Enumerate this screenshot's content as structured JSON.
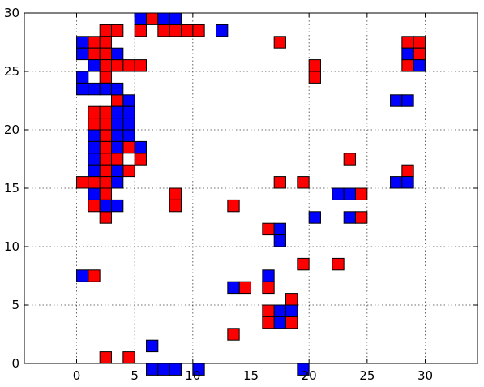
{
  "chart_data": {
    "type": "scatter",
    "marker": "square",
    "grid": true,
    "xlim": [
      -4.5,
      34.5
    ],
    "ylim": [
      0,
      30
    ],
    "xticks": [
      0,
      5,
      10,
      15,
      20,
      25,
      30
    ],
    "yticks": [
      0,
      5,
      10,
      15,
      20,
      25,
      30
    ],
    "xtick_labels": [
      "0",
      "5",
      "10",
      "15",
      "20",
      "25",
      "30"
    ],
    "ytick_labels": [
      "0",
      "5",
      "10",
      "15",
      "20",
      "25",
      "30"
    ],
    "colors": {
      "red": "#ff0000",
      "blue": "#0000ff"
    },
    "series": [
      {
        "color": "red",
        "points": [
          [
            6.5,
            29.5
          ],
          [
            2.5,
            28.5
          ],
          [
            3.5,
            28.5
          ],
          [
            5.5,
            28.5
          ],
          [
            7.5,
            28.5
          ],
          [
            8.5,
            28.5
          ],
          [
            9.5,
            28.5
          ],
          [
            10.5,
            28.5
          ],
          [
            1.5,
            27.5
          ],
          [
            2.5,
            27.5
          ],
          [
            17.5,
            27.5
          ],
          [
            28.5,
            27.5
          ],
          [
            29.5,
            27.5
          ],
          [
            1.5,
            26.5
          ],
          [
            2.5,
            26.5
          ],
          [
            29.5,
            26.5
          ],
          [
            2.5,
            25.5
          ],
          [
            3.5,
            25.5
          ],
          [
            4.5,
            25.5
          ],
          [
            5.5,
            25.5
          ],
          [
            20.5,
            25.5
          ],
          [
            28.5,
            25.5
          ],
          [
            2.5,
            24.5
          ],
          [
            20.5,
            24.5
          ],
          [
            3.5,
            22.5
          ],
          [
            1.5,
            21.5
          ],
          [
            2.5,
            21.5
          ],
          [
            1.5,
            20.5
          ],
          [
            2.5,
            20.5
          ],
          [
            2.5,
            19.5
          ],
          [
            2.5,
            18.5
          ],
          [
            4.5,
            18.5
          ],
          [
            2.5,
            17.5
          ],
          [
            3.5,
            17.5
          ],
          [
            5.5,
            17.5
          ],
          [
            23.5,
            17.5
          ],
          [
            2.5,
            16.5
          ],
          [
            4.5,
            16.5
          ],
          [
            28.5,
            16.5
          ],
          [
            0.5,
            15.5
          ],
          [
            1.5,
            15.5
          ],
          [
            2.5,
            15.5
          ],
          [
            17.5,
            15.5
          ],
          [
            19.5,
            15.5
          ],
          [
            2.5,
            14.5
          ],
          [
            8.5,
            14.5
          ],
          [
            24.5,
            14.5
          ],
          [
            1.5,
            13.5
          ],
          [
            8.5,
            13.5
          ],
          [
            13.5,
            13.5
          ],
          [
            2.5,
            12.5
          ],
          [
            24.5,
            12.5
          ],
          [
            16.5,
            11.5
          ],
          [
            19.5,
            8.5
          ],
          [
            22.5,
            8.5
          ],
          [
            1.5,
            7.5
          ],
          [
            14.5,
            6.5
          ],
          [
            16.5,
            6.5
          ],
          [
            18.5,
            5.5
          ],
          [
            16.5,
            4.5
          ],
          [
            16.5,
            3.5
          ],
          [
            18.5,
            3.5
          ],
          [
            13.5,
            2.5
          ],
          [
            2.5,
            0.5
          ],
          [
            4.5,
            0.5
          ]
        ]
      },
      {
        "color": "blue",
        "points": [
          [
            5.5,
            29.5
          ],
          [
            7.5,
            29.5
          ],
          [
            8.5,
            29.5
          ],
          [
            12.5,
            28.5
          ],
          [
            0.5,
            27.5
          ],
          [
            0.5,
            26.5
          ],
          [
            3.5,
            26.5
          ],
          [
            28.5,
            26.5
          ],
          [
            1.5,
            25.5
          ],
          [
            29.5,
            25.5
          ],
          [
            0.5,
            24.5
          ],
          [
            0.5,
            23.5
          ],
          [
            1.5,
            23.5
          ],
          [
            2.5,
            23.5
          ],
          [
            3.5,
            23.5
          ],
          [
            4.5,
            22.5
          ],
          [
            27.5,
            22.5
          ],
          [
            28.5,
            22.5
          ],
          [
            3.5,
            21.5
          ],
          [
            4.5,
            21.5
          ],
          [
            3.5,
            20.5
          ],
          [
            4.5,
            20.5
          ],
          [
            1.5,
            19.5
          ],
          [
            3.5,
            19.5
          ],
          [
            4.5,
            19.5
          ],
          [
            1.5,
            18.5
          ],
          [
            3.5,
            18.5
          ],
          [
            5.5,
            18.5
          ],
          [
            1.5,
            17.5
          ],
          [
            1.5,
            16.5
          ],
          [
            3.5,
            16.5
          ],
          [
            3.5,
            15.5
          ],
          [
            27.5,
            15.5
          ],
          [
            28.5,
            15.5
          ],
          [
            1.5,
            14.5
          ],
          [
            22.5,
            14.5
          ],
          [
            23.5,
            14.5
          ],
          [
            2.5,
            13.5
          ],
          [
            3.5,
            13.5
          ],
          [
            20.5,
            12.5
          ],
          [
            23.5,
            12.5
          ],
          [
            17.5,
            11.5
          ],
          [
            17.5,
            10.5
          ],
          [
            0.5,
            7.5
          ],
          [
            16.5,
            7.5
          ],
          [
            13.5,
            6.5
          ],
          [
            17.5,
            4.5
          ],
          [
            18.5,
            4.5
          ],
          [
            17.5,
            3.5
          ],
          [
            6.5,
            1.5
          ],
          [
            6.5,
            -0.5
          ],
          [
            7.5,
            -0.5
          ],
          [
            8.5,
            -0.5
          ],
          [
            10.5,
            -0.5
          ],
          [
            19.5,
            -0.5
          ]
        ]
      }
    ]
  }
}
